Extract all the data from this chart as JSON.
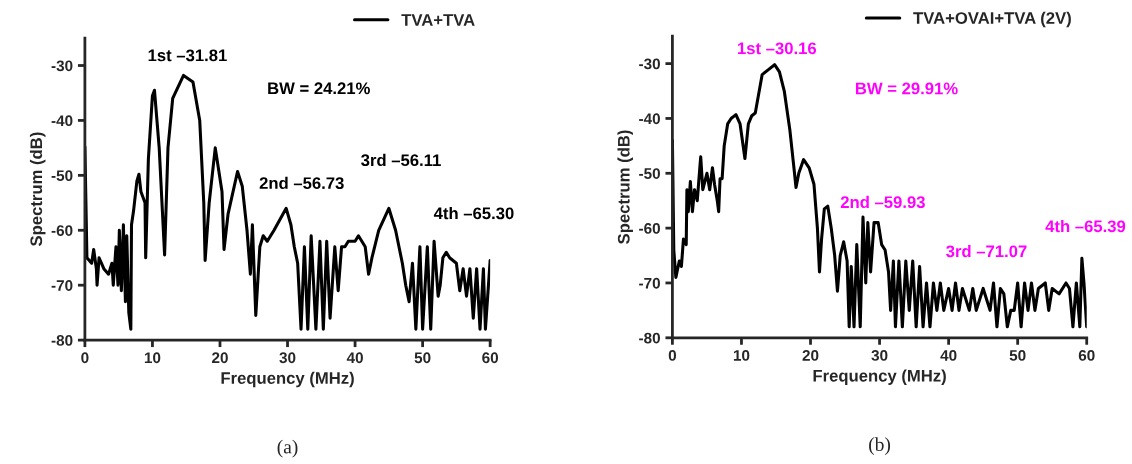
{
  "chart_data": [
    {
      "type": "line",
      "title": "(a)",
      "xlabel": "Frequency (MHz)",
      "ylabel": "Spectrum (dB)",
      "xlim": [
        0,
        60
      ],
      "ylim": [
        -80,
        -25
      ],
      "xticks": [
        0,
        10,
        20,
        30,
        40,
        50,
        60
      ],
      "yticks": [
        -80,
        -70,
        -60,
        -50,
        -40,
        -30
      ],
      "legend": "top right",
      "grid": false,
      "series": [
        {
          "name": "TVA+TVA",
          "color": "#000000",
          "x": [
            0,
            0.3,
            1,
            1.3,
            1.7,
            1.8,
            2.1,
            2.8,
            3.5,
            4,
            4.2,
            4.6,
            4.9,
            5.1,
            5.4,
            5.7,
            6,
            6.2,
            6.5,
            6.8,
            6.9,
            7.2,
            7.7,
            8,
            8.3,
            8.9,
            9,
            9.4,
            10,
            10.3,
            11,
            11.8,
            12.3,
            13,
            14.6,
            16,
            17,
            17.6,
            17.8,
            18.4,
            19.3,
            20.3,
            20.6,
            21.2,
            22.6,
            23.3,
            24,
            24.5,
            24.8,
            25.3,
            25.9,
            26.4,
            27,
            28,
            29.8,
            30.5,
            31,
            31.5,
            32,
            32.5,
            33,
            33.5,
            34.2,
            34.8,
            35.3,
            35.8,
            36.3,
            37,
            37.5,
            38,
            38.5,
            39,
            40,
            40.5,
            41.5,
            42,
            42.5,
            43.5,
            45,
            46,
            46.5,
            47,
            47.5,
            48,
            48.5,
            49,
            49.6,
            50,
            50.7,
            51.2,
            51.7,
            52.3,
            52.6,
            53,
            53.5,
            54,
            55,
            55.5,
            56,
            56.5,
            57,
            57.5,
            58,
            58.5,
            59,
            59.3,
            60
          ],
          "values": [
            -44.8,
            -65,
            -66,
            -63.5,
            -67,
            -70,
            -65,
            -67,
            -68,
            -66,
            -70,
            -63,
            -70,
            -60,
            -71,
            -59,
            -73,
            -61,
            -75,
            -78,
            -59,
            -56.5,
            -51,
            -49.8,
            -53,
            -55,
            -65,
            -47,
            -35.5,
            -34.5,
            -45,
            -64.5,
            -45,
            -36,
            -31.8,
            -33,
            -40,
            -55,
            -65.5,
            -55,
            -45,
            -53,
            -63.5,
            -57,
            -49.3,
            -52,
            -60,
            -68,
            -59,
            -75.5,
            -63,
            -61,
            -62,
            -60,
            -56,
            -59,
            -63,
            -66,
            -78,
            -63,
            -78,
            -61,
            -78,
            -62,
            -78,
            -62,
            -76,
            -63,
            -71,
            -63,
            -63,
            -62,
            -62,
            -61,
            -63,
            -68,
            -65,
            -60,
            -56,
            -60,
            -63,
            -66,
            -70,
            -73,
            -66,
            -78,
            -63,
            -78,
            -63,
            -78,
            -62,
            -72,
            -70,
            -65,
            -64,
            -65,
            -66,
            -71,
            -67,
            -72,
            -67,
            -76,
            -67,
            -78,
            -67,
            -78,
            -65.5
          ]
        }
      ],
      "annotations": [
        "1st –31.81",
        "BW = 24.21%",
        "2nd –56.73",
        "3rd –56.11",
        "4th –65.30"
      ]
    },
    {
      "type": "line",
      "title": "(b)",
      "xlabel": "Frequency (MHz)",
      "ylabel": "Spectrum (dB)",
      "xlim": [
        0,
        60
      ],
      "ylim": [
        -80,
        -25
      ],
      "xticks": [
        0,
        10,
        20,
        30,
        40,
        50,
        60
      ],
      "yticks": [
        -80,
        -70,
        -60,
        -50,
        -40,
        -30
      ],
      "legend": "top right",
      "grid": false,
      "series": [
        {
          "name": "TVA+OVAI+TVA (2V)",
          "color": "#000000",
          "x": [
            0,
            0.2,
            0.5,
            1,
            1.3,
            1.6,
            2,
            2.1,
            2.3,
            2.6,
            2.9,
            3.2,
            3.6,
            4,
            4.1,
            4.4,
            5,
            5.4,
            5.8,
            6.1,
            6.5,
            6.7,
            6.9,
            7.2,
            7.5,
            8,
            8.5,
            9.2,
            9.8,
            10.5,
            11,
            11.5,
            12,
            12.5,
            13,
            14,
            14.8,
            15.5,
            16.2,
            17,
            17.6,
            17.9,
            18.3,
            19,
            19.8,
            20.5,
            21,
            21.3,
            21.6,
            22,
            22.5,
            23,
            23.5,
            23.9,
            24.3,
            24.8,
            25.3,
            25.6,
            25.9,
            26.3,
            26.7,
            27.2,
            27.6,
            28,
            28.3,
            28.7,
            29.2,
            29.8,
            30.3,
            30.8,
            31.3,
            31.6,
            32,
            32.3,
            32.8,
            33.3,
            33.8,
            34.3,
            34.8,
            35.3,
            35.8,
            36.3,
            36.8,
            37.3,
            37.8,
            38.3,
            38.8,
            39.3,
            40,
            40.5,
            41,
            41.5,
            42,
            43,
            43.5,
            44,
            45,
            46,
            46.5,
            47,
            47.5,
            48,
            48.5,
            49,
            49.5,
            50,
            50.5,
            51,
            51.5,
            52,
            52.5,
            53,
            54,
            54.5,
            55,
            56,
            57,
            57.5,
            58,
            58.5,
            59,
            59.3,
            59.6,
            60
          ],
          "values": [
            -44,
            -64,
            -69,
            -66,
            -67,
            -62,
            -63,
            -53,
            -57,
            -51.5,
            -57,
            -53,
            -55,
            -48.5,
            -47,
            -53,
            -50,
            -53,
            -49,
            -52,
            -55,
            -57,
            -51,
            -51,
            -45,
            -41,
            -40,
            -39.3,
            -41,
            -47.3,
            -41,
            -39.5,
            -39,
            -35.5,
            -32,
            -31,
            -30.2,
            -31.5,
            -35,
            -42,
            -49,
            -52.6,
            -50,
            -47.5,
            -49,
            -52,
            -60,
            -68,
            -62,
            -56.5,
            -56,
            -60,
            -65,
            -71.5,
            -65,
            -62.5,
            -66,
            -78,
            -67,
            -78,
            -63,
            -78,
            -58,
            -70,
            -59,
            -68,
            -59,
            -59,
            -63,
            -64,
            -68,
            -75,
            -66,
            -78,
            -66,
            -78,
            -66,
            -75,
            -66,
            -78,
            -67,
            -78,
            -70,
            -78,
            -70,
            -75,
            -70,
            -75,
            -71,
            -75,
            -70,
            -75,
            -71,
            -75,
            -71,
            -75,
            -71,
            -75,
            -70,
            -78,
            -71,
            -72,
            -78,
            -75,
            -75,
            -70,
            -78,
            -70,
            -75,
            -70,
            -75,
            -71,
            -70,
            -75,
            -71,
            -72,
            -70,
            -71,
            -78,
            -70,
            -78,
            -65.5,
            -70,
            -78
          ]
        }
      ],
      "annotations": [
        "1st –30.16",
        "BW = 29.91%",
        "2nd –59.93",
        "3rd –71.07",
        "4th –65.39"
      ]
    }
  ]
}
